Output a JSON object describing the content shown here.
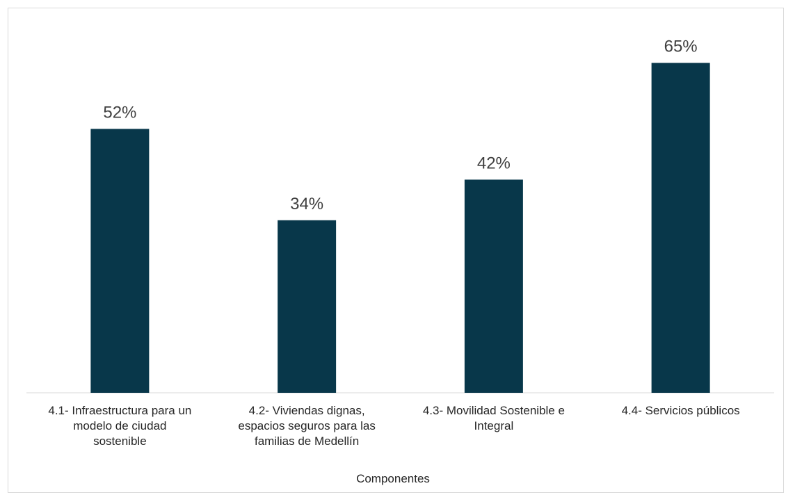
{
  "chart_data": {
    "type": "bar",
    "categories": [
      "4.1- Infraestructura para un modelo de ciudad sostenible",
      "4.2- Viviendas dignas, espacios seguros para las familias de Medellín",
      "4.3- Movilidad Sostenible e Integral",
      "4.4- Servicios públicos"
    ],
    "category_lines": [
      [
        "4.1- Infraestructura para un",
        "modelo de ciudad",
        "sostenible"
      ],
      [
        "4.2- Viviendas dignas,",
        "espacios seguros para las",
        "familias de Medellín"
      ],
      [
        "4.3- Movilidad Sostenible e",
        "Integral"
      ],
      [
        "4.4- Servicios públicos"
      ]
    ],
    "values": [
      52,
      34,
      42,
      65
    ],
    "data_labels": [
      "52%",
      "34%",
      "42%",
      "65%"
    ],
    "xlabel": "Componentes",
    "ylabel": "",
    "ylim": [
      0,
      70
    ],
    "grid": false,
    "legend": "none",
    "bar_color": "#08374a"
  }
}
